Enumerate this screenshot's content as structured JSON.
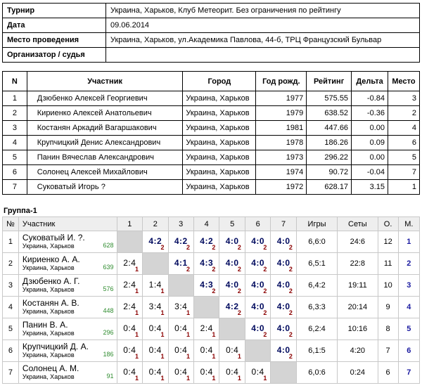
{
  "info": [
    {
      "label": "Турнир",
      "value": "Украина, Харьков, Клуб Метеорит. Без ограничения по рейтингу"
    },
    {
      "label": "Дата",
      "value": "09.06.2014"
    },
    {
      "label": "Место проведения",
      "value": "Украина, Харьков, ул.Академика Павлова, 44-б, ТРЦ Французский Бульвар"
    },
    {
      "label": "Организатор / судья",
      "value": ""
    }
  ],
  "participants": {
    "headers": [
      "N",
      "Участник",
      "Город",
      "Год рожд.",
      "Рейтинг",
      "Дельта",
      "Место"
    ],
    "rows": [
      {
        "n": "1",
        "name": "Дзюбенко Алексей Георгиевич",
        "city": "Украина, Харьков",
        "year": "1977",
        "rating": "575.55",
        "delta": "-0.84",
        "place": "3"
      },
      {
        "n": "2",
        "name": "Кириенко Алексей Анатольевич",
        "city": "Украина, Харьков",
        "year": "1979",
        "rating": "638.52",
        "delta": "-0.36",
        "place": "2"
      },
      {
        "n": "3",
        "name": "Костанян Аркадий Вагаршакович",
        "city": "Украина, Харьков",
        "year": "1981",
        "rating": "447.66",
        "delta": "0.00",
        "place": "4"
      },
      {
        "n": "4",
        "name": "Крупчицкий Денис Александрович",
        "city": "Украина, Харьков",
        "year": "1978",
        "rating": "186.26",
        "delta": "0.09",
        "place": "6"
      },
      {
        "n": "5",
        "name": "Панин Вячеслав Александрович",
        "city": "Украина, Харьков",
        "year": "1973",
        "rating": "296.22",
        "delta": "0.00",
        "place": "5"
      },
      {
        "n": "6",
        "name": "Солонец Алексей Михайлович",
        "city": "Украина, Харьков",
        "year": "1974",
        "rating": "90.72",
        "delta": "-0.04",
        "place": "7"
      },
      {
        "n": "7",
        "name": "Суковатый Игорь ?",
        "city": "Украина, Харьков",
        "year": "1972",
        "rating": "628.17",
        "delta": "3.15",
        "place": "1"
      }
    ]
  },
  "group": {
    "title": "Группа-1",
    "headers": {
      "n": "№",
      "player": "Участник",
      "cols": [
        "1",
        "2",
        "3",
        "4",
        "5",
        "6",
        "7"
      ],
      "games": "Игры",
      "sets": "Сеты",
      "points": "О.",
      "place": "М."
    },
    "rows": [
      {
        "n": "1",
        "name": "Суковатый И. ?.",
        "city": "Украина, Харьков",
        "rating": "628",
        "results": [
          null,
          {
            "s": "4:2",
            "p": "2",
            "w": true
          },
          {
            "s": "4:2",
            "p": "2",
            "w": true
          },
          {
            "s": "4:2",
            "p": "2",
            "w": true
          },
          {
            "s": "4:0",
            "p": "2",
            "w": true
          },
          {
            "s": "4:0",
            "p": "2",
            "w": true
          },
          {
            "s": "4:0",
            "p": "2",
            "w": true
          }
        ],
        "games": "6,6:0",
        "sets": "24:6",
        "points": "12",
        "place": "1"
      },
      {
        "n": "2",
        "name": "Кириенко А. А.",
        "city": "Украина, Харьков",
        "rating": "639",
        "results": [
          {
            "s": "2:4",
            "p": "1",
            "w": false
          },
          null,
          {
            "s": "4:1",
            "p": "2",
            "w": true
          },
          {
            "s": "4:3",
            "p": "2",
            "w": true
          },
          {
            "s": "4:0",
            "p": "2",
            "w": true
          },
          {
            "s": "4:0",
            "p": "2",
            "w": true
          },
          {
            "s": "4:0",
            "p": "2",
            "w": true
          }
        ],
        "games": "6,5:1",
        "sets": "22:8",
        "points": "11",
        "place": "2"
      },
      {
        "n": "3",
        "name": "Дзюбенко А. Г.",
        "city": "Украина, Харьков",
        "rating": "576",
        "results": [
          {
            "s": "2:4",
            "p": "1",
            "w": false
          },
          {
            "s": "1:4",
            "p": "1",
            "w": false
          },
          null,
          {
            "s": "4:3",
            "p": "2",
            "w": true
          },
          {
            "s": "4:0",
            "p": "2",
            "w": true
          },
          {
            "s": "4:0",
            "p": "2",
            "w": true
          },
          {
            "s": "4:0",
            "p": "2",
            "w": true
          }
        ],
        "games": "6,4:2",
        "sets": "19:11",
        "points": "10",
        "place": "3"
      },
      {
        "n": "4",
        "name": "Костанян А. В.",
        "city": "Украина, Харьков",
        "rating": "448",
        "results": [
          {
            "s": "2:4",
            "p": "1",
            "w": false
          },
          {
            "s": "3:4",
            "p": "1",
            "w": false
          },
          {
            "s": "3:4",
            "p": "1",
            "w": false
          },
          null,
          {
            "s": "4:2",
            "p": "2",
            "w": true
          },
          {
            "s": "4:0",
            "p": "2",
            "w": true
          },
          {
            "s": "4:0",
            "p": "2",
            "w": true
          }
        ],
        "games": "6,3:3",
        "sets": "20:14",
        "points": "9",
        "place": "4"
      },
      {
        "n": "5",
        "name": "Панин В. А.",
        "city": "Украина, Харьков",
        "rating": "296",
        "results": [
          {
            "s": "0:4",
            "p": "1",
            "w": false
          },
          {
            "s": "0:4",
            "p": "1",
            "w": false
          },
          {
            "s": "0:4",
            "p": "1",
            "w": false
          },
          {
            "s": "2:4",
            "p": "1",
            "w": false
          },
          null,
          {
            "s": "4:0",
            "p": "2",
            "w": true
          },
          {
            "s": "4:0",
            "p": "2",
            "w": true
          }
        ],
        "games": "6,2:4",
        "sets": "10:16",
        "points": "8",
        "place": "5"
      },
      {
        "n": "6",
        "name": "Крупчицкий Д. А.",
        "city": "Украина, Харьков",
        "rating": "186",
        "results": [
          {
            "s": "0:4",
            "p": "1",
            "w": false
          },
          {
            "s": "0:4",
            "p": "1",
            "w": false
          },
          {
            "s": "0:4",
            "p": "1",
            "w": false
          },
          {
            "s": "0:4",
            "p": "1",
            "w": false
          },
          {
            "s": "0:4",
            "p": "1",
            "w": false
          },
          null,
          {
            "s": "4:0",
            "p": "2",
            "w": true
          }
        ],
        "games": "6,1:5",
        "sets": "4:20",
        "points": "7",
        "place": "6"
      },
      {
        "n": "7",
        "name": "Солонец А. М.",
        "city": "Украина, Харьков",
        "rating": "91",
        "results": [
          {
            "s": "0:4",
            "p": "1",
            "w": false
          },
          {
            "s": "0:4",
            "p": "1",
            "w": false
          },
          {
            "s": "0:4",
            "p": "1",
            "w": false
          },
          {
            "s": "0:4",
            "p": "1",
            "w": false
          },
          {
            "s": "0:4",
            "p": "1",
            "w": false
          },
          {
            "s": "0:4",
            "p": "1",
            "w": false
          },
          null
        ],
        "games": "6,0:6",
        "sets": "0:24",
        "points": "6",
        "place": "7"
      }
    ]
  }
}
